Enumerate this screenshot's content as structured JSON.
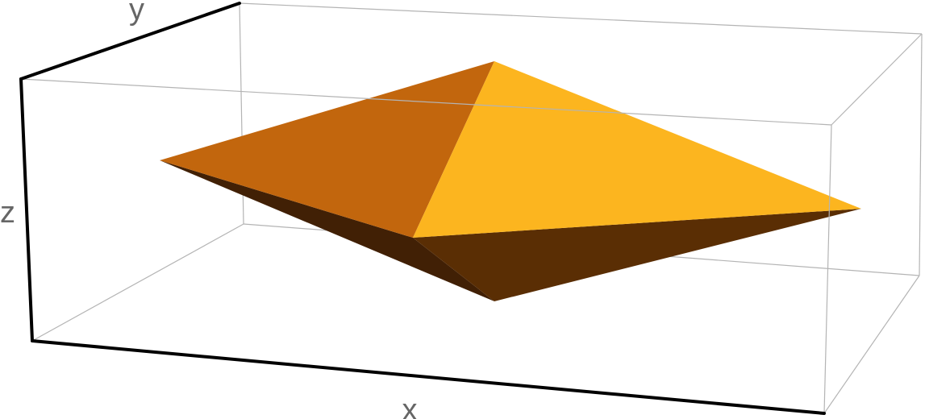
{
  "axes": {
    "x_label": "x",
    "y_label": "y",
    "z_label": "z"
  },
  "colors": {
    "box_edge": "#b4b4b4",
    "axis_edge": "#000000",
    "label": "#666666",
    "face_upper_left": "#c2660d",
    "face_upper_right": "#fcb51f",
    "face_lower_left": "#412005",
    "face_lower_right": "#5a2e04"
  }
}
